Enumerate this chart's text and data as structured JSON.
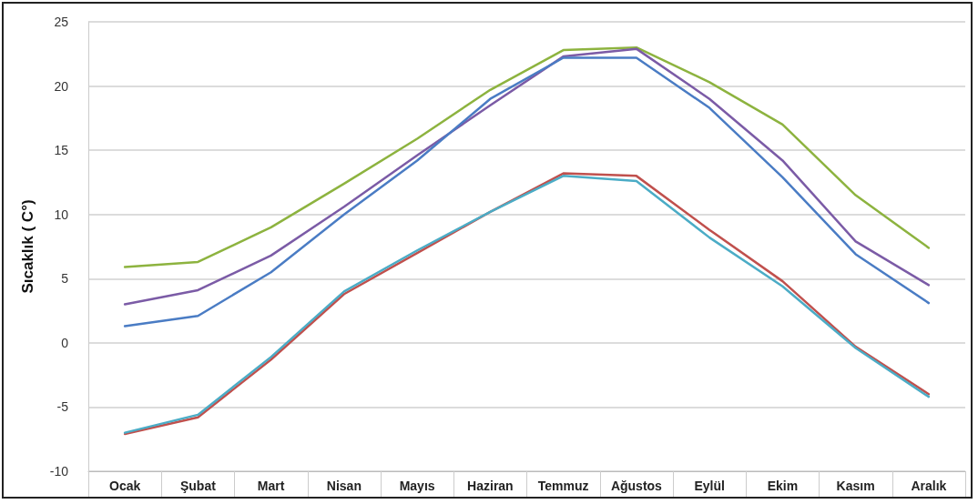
{
  "chart_data": {
    "type": "line",
    "ylabel": "Sıcaklık ( C°)",
    "categories": [
      "Ocak",
      "Şubat",
      "Mart",
      "Nisan",
      "Mayıs",
      "Haziran",
      "Temmuz",
      "Ağustos",
      "Eylül",
      "Ekim",
      "Kasım",
      "Aralık"
    ],
    "series": [
      {
        "color": "#8db33f",
        "values": [
          5.9,
          6.3,
          9.0,
          12.4,
          15.9,
          19.7,
          22.8,
          23.0,
          20.3,
          17.0,
          11.5,
          7.4
        ]
      },
      {
        "color": "#7b5ba6",
        "values": [
          3.0,
          4.1,
          6.8,
          10.6,
          14.6,
          18.5,
          22.3,
          22.9,
          19.0,
          14.2,
          7.9,
          4.5
        ]
      },
      {
        "color": "#4a7cc4",
        "values": [
          1.3,
          2.1,
          5.5,
          10.0,
          14.2,
          19.0,
          22.2,
          22.2,
          18.3,
          12.9,
          6.9,
          3.1
        ]
      },
      {
        "color": "#c0504d",
        "values": [
          -7.1,
          -5.8,
          -1.3,
          3.8,
          7.0,
          10.2,
          13.2,
          13.0,
          8.8,
          4.8,
          -0.3,
          -4.0
        ]
      },
      {
        "color": "#4bacc6",
        "values": [
          -7.0,
          -5.6,
          -1.1,
          4.0,
          7.2,
          10.2,
          13.0,
          12.6,
          8.2,
          4.4,
          -0.4,
          -4.2
        ]
      }
    ],
    "ylim": [
      -10,
      25
    ],
    "yticks": [
      -10,
      -5,
      0,
      5,
      10,
      15,
      20,
      25
    ],
    "grid": "y",
    "marker": "none",
    "line_style": "solid"
  }
}
